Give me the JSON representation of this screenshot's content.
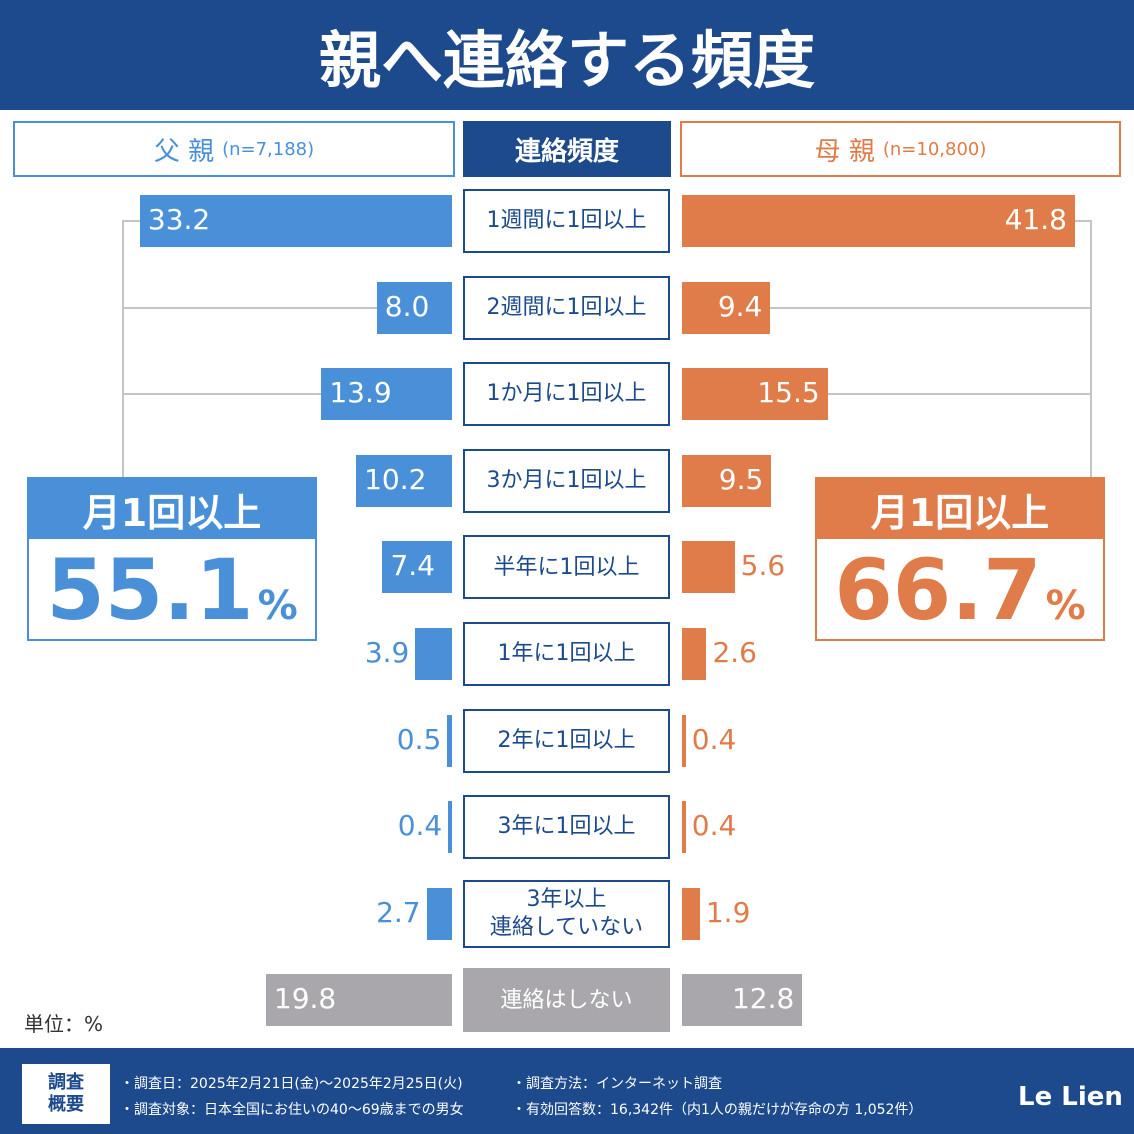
{
  "header": {
    "title": "親へ連絡する頻度"
  },
  "chart_data": {
    "type": "butterfly",
    "center_label": "連絡頻度",
    "categories": [
      "1週間に1回以上",
      "2週間に1回以上",
      "1か月に1回以上",
      "3か月に1回以上",
      "半年に1回以上",
      "1年に1回以上",
      "2年に1回以上",
      "3年に1回以上",
      "3年以上\n連絡していない",
      "連絡はしない"
    ],
    "series": [
      {
        "name": "父 親",
        "sample": "(n=7,188)",
        "color": "#4a90d9",
        "colors": [
          "#4a90d9",
          "#4a90d9",
          "#4a90d9",
          "#4a90d9",
          "#4a90d9",
          "#4a90d9",
          "#4a90d9",
          "#4a90d9",
          "#4a90d9",
          "#a9a7ab"
        ],
        "values": [
          33.2,
          8.0,
          13.9,
          10.2,
          7.4,
          3.9,
          0.5,
          0.4,
          2.7,
          19.8
        ],
        "value_labels": [
          "33.2",
          "8.0",
          "13.9",
          "10.2",
          "7.4",
          "3.9",
          "0.5",
          "0.4",
          "2.7",
          "19.8"
        ],
        "summary": {
          "label": "月1回以上",
          "value": 55.1,
          "unit": "%"
        }
      },
      {
        "name": "母 親",
        "sample": "(n=10,800)",
        "color": "#e07b4a",
        "colors": [
          "#e07b4a",
          "#e07b4a",
          "#e07b4a",
          "#e07b4a",
          "#e07b4a",
          "#e07b4a",
          "#e07b4a",
          "#e07b4a",
          "#e07b4a",
          "#a9a7ab"
        ],
        "values": [
          41.8,
          9.4,
          15.5,
          9.5,
          5.6,
          2.6,
          0.4,
          0.4,
          1.9,
          12.8
        ],
        "value_labels": [
          "41.8",
          "9.4",
          "15.5",
          "9.5",
          "5.6",
          "2.6",
          "0.4",
          "0.4",
          "1.9",
          "12.8"
        ],
        "summary": {
          "label": "月1回以上",
          "value": 66.7,
          "unit": "%"
        }
      }
    ],
    "unit_note": "単位：%"
  },
  "footer": {
    "label": "調査\n概要",
    "items": [
      "・調査日：2025年2月21日(金)～2025年2月25日(火)",
      "・調査方法：インターネット調査",
      "・調査対象：日本全国にお住いの40～69歳までの男女",
      "・有効回答数：16,342件（内1人の親だけが存命の方 1,052件）"
    ],
    "logo": "Le Lien"
  }
}
